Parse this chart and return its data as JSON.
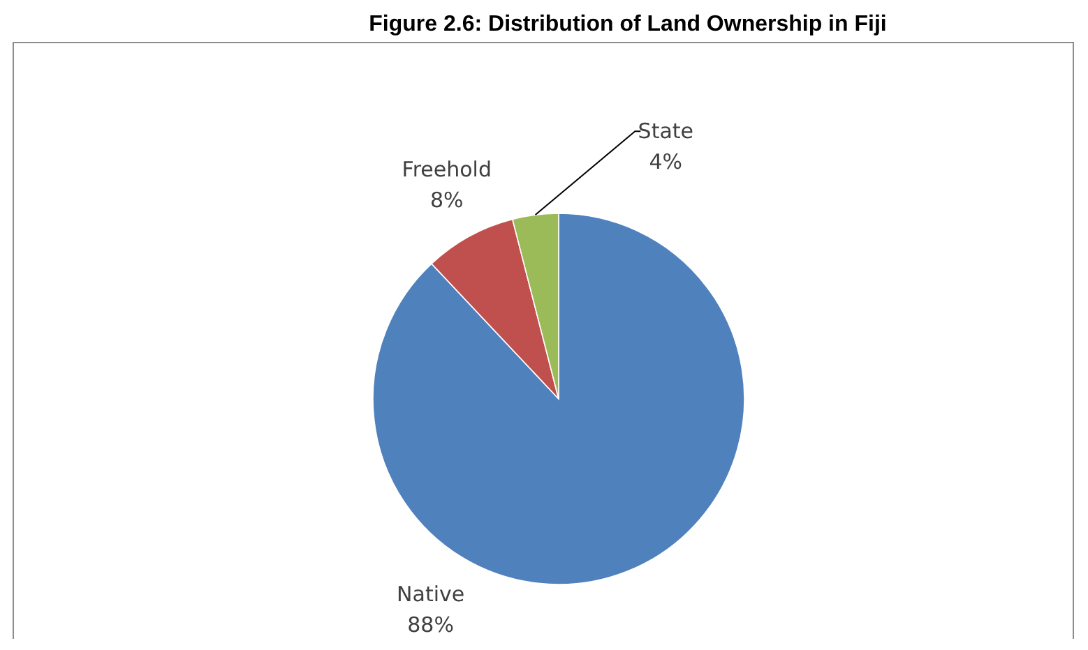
{
  "chart_data": {
    "type": "pie",
    "title": "Figure 2.6: Distribution of Land Ownership in Fiji",
    "categories": [
      "Native",
      "Freehold",
      "State"
    ],
    "values": [
      88,
      8,
      4
    ],
    "colors": [
      "#4f81bd",
      "#c0504d",
      "#9bbb59"
    ],
    "value_labels": [
      "88%",
      "8%",
      "4%"
    ]
  }
}
